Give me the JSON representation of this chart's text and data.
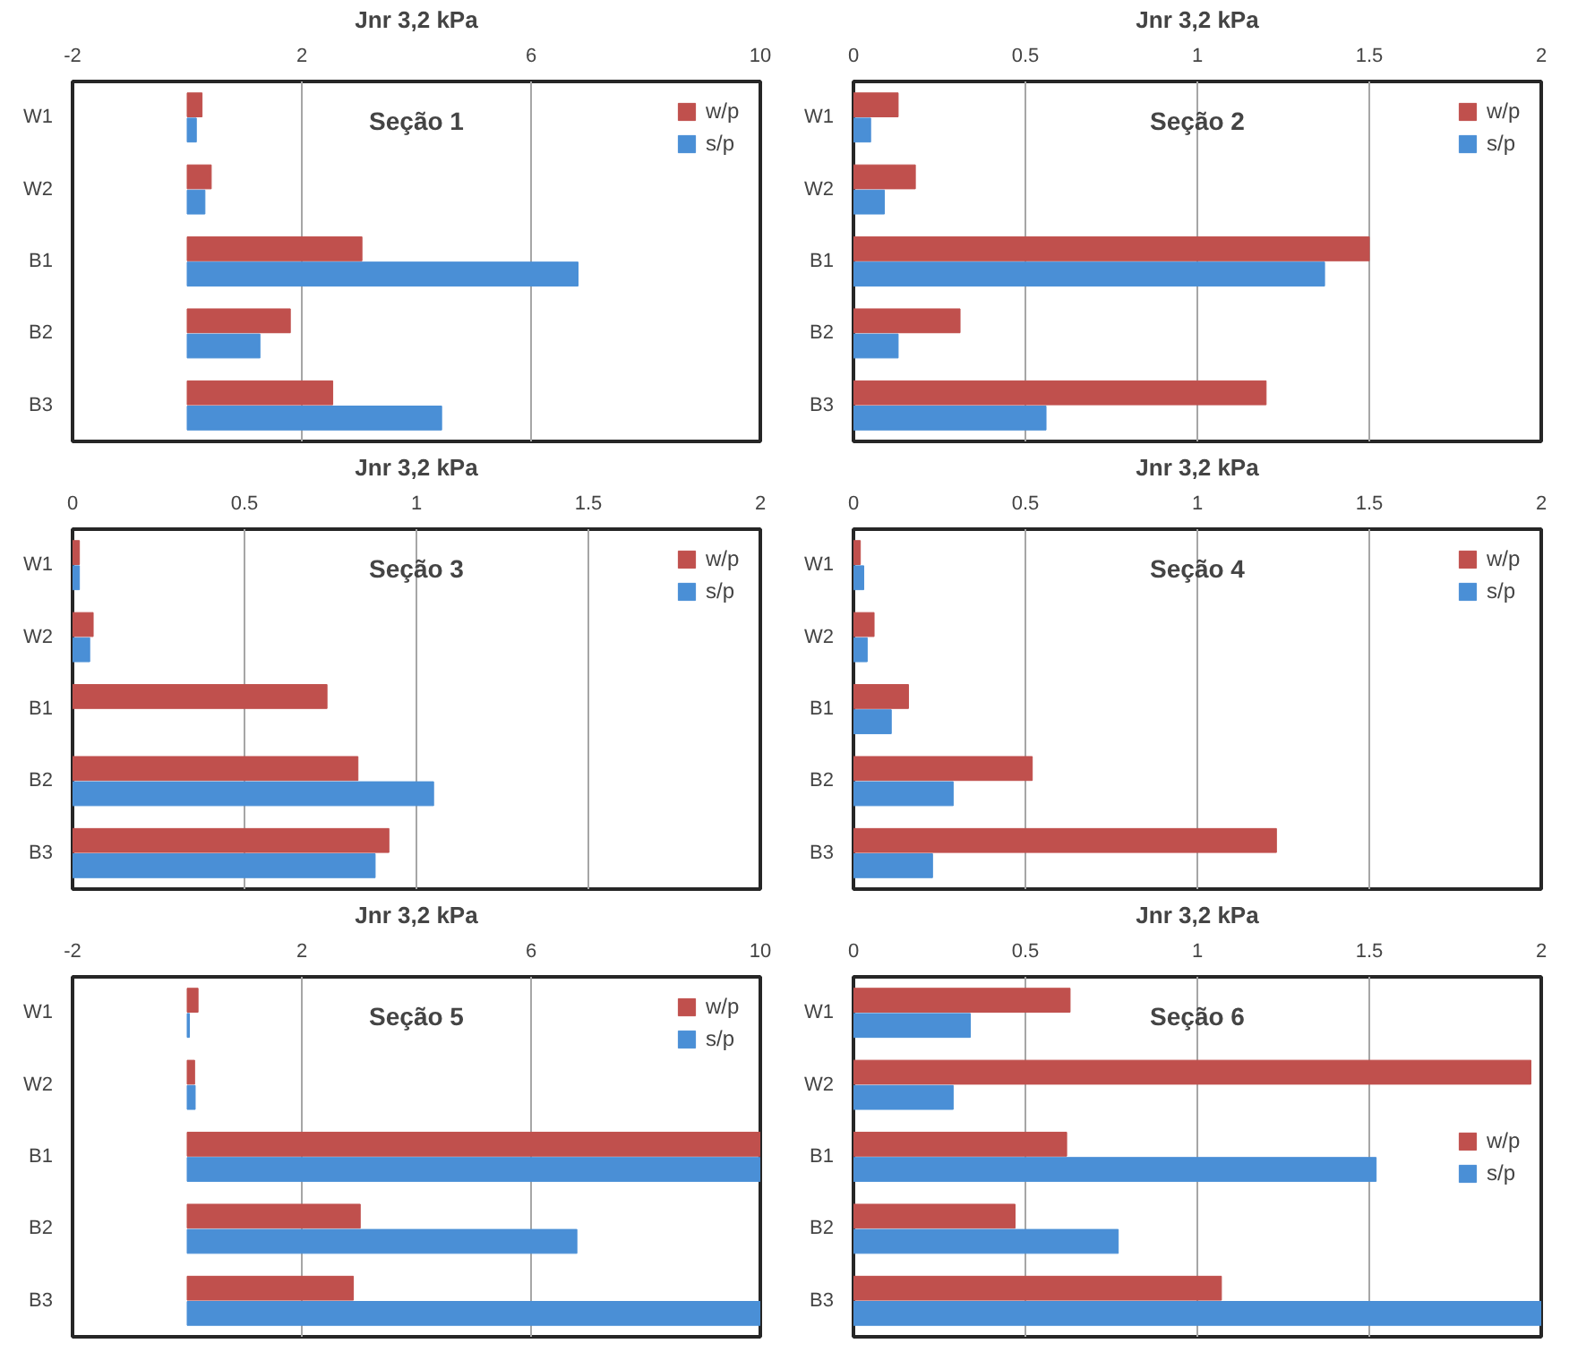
{
  "chart_data": [
    {
      "type": "bar",
      "orientation": "horizontal",
      "title": "Seção 1",
      "xlabel": "Jnr 3,2 kPa",
      "categories": [
        "W1",
        "W2",
        "B1",
        "B2",
        "B3"
      ],
      "xlim": [
        -2,
        10
      ],
      "xticks": [
        -2,
        2,
        6,
        10
      ],
      "grid": "x",
      "legend": "top right",
      "series": [
        {
          "name": "w/p",
          "color": "#c0504d",
          "values": [
            0.26,
            0.42,
            3.05,
            1.8,
            2.54
          ]
        },
        {
          "name": "s/p",
          "color": "#4a8fd6",
          "values": [
            0.16,
            0.31,
            6.82,
            1.27,
            4.44
          ]
        }
      ]
    },
    {
      "type": "bar",
      "orientation": "horizontal",
      "title": "Seção 2",
      "xlabel": "Jnr 3,2 kPa",
      "categories": [
        "W1",
        "W2",
        "B1",
        "B2",
        "B3"
      ],
      "xlim": [
        0,
        2
      ],
      "xticks": [
        0,
        0.5,
        1,
        1.5,
        2
      ],
      "grid": "x",
      "legend": "top right",
      "series": [
        {
          "name": "w/p",
          "color": "#c0504d",
          "values": [
            0.13,
            0.18,
            1.5,
            0.31,
            1.2
          ]
        },
        {
          "name": "s/p",
          "color": "#4a8fd6",
          "values": [
            0.05,
            0.09,
            1.37,
            0.13,
            0.56
          ]
        }
      ]
    },
    {
      "type": "bar",
      "orientation": "horizontal",
      "title": "Seção 3",
      "xlabel": "Jnr 3,2 kPa",
      "categories": [
        "W1",
        "W2",
        "B1",
        "B2",
        "B3"
      ],
      "xlim": [
        0,
        2
      ],
      "xticks": [
        0,
        0.5,
        1,
        1.5,
        2
      ],
      "grid": "x",
      "legend": "top right",
      "series": [
        {
          "name": "w/p",
          "color": "#c0504d",
          "values": [
            0.02,
            0.06,
            0.74,
            0.83,
            0.92
          ]
        },
        {
          "name": "s/p",
          "color": "#4a8fd6",
          "values": [
            0.02,
            0.05,
            null,
            1.05,
            0.88
          ]
        }
      ]
    },
    {
      "type": "bar",
      "orientation": "horizontal",
      "title": "Seção 4",
      "xlabel": "Jnr 3,2 kPa",
      "categories": [
        "W1",
        "W2",
        "B1",
        "B2",
        "B3"
      ],
      "xlim": [
        0,
        2
      ],
      "xticks": [
        0,
        0.5,
        1,
        1.5,
        2
      ],
      "grid": "x",
      "legend": "top right",
      "series": [
        {
          "name": "w/p",
          "color": "#c0504d",
          "values": [
            0.02,
            0.06,
            0.16,
            0.52,
            1.23
          ]
        },
        {
          "name": "s/p",
          "color": "#4a8fd6",
          "values": [
            0.03,
            0.04,
            0.11,
            0.29,
            0.23
          ]
        }
      ]
    },
    {
      "type": "bar",
      "orientation": "horizontal",
      "title": "Seção 5",
      "xlabel": "Jnr 3,2 kPa",
      "categories": [
        "W1",
        "W2",
        "B1",
        "B2",
        "B3"
      ],
      "xlim": [
        -2,
        10
      ],
      "xticks": [
        -2,
        2,
        6,
        10
      ],
      "grid": "x",
      "legend": "top right",
      "series": [
        {
          "name": "w/p",
          "color": "#c0504d",
          "values": [
            0.19,
            0.13,
            10,
            3.02,
            2.9
          ]
        },
        {
          "name": "s/p",
          "color": "#4a8fd6",
          "values": [
            0.04,
            0.14,
            10,
            6.8,
            10
          ]
        }
      ]
    },
    {
      "type": "bar",
      "orientation": "horizontal",
      "title": "Seção 6",
      "xlabel": "Jnr 3,2 kPa",
      "categories": [
        "W1",
        "W2",
        "B1",
        "B2",
        "B3"
      ],
      "xlim": [
        0,
        2
      ],
      "xticks": [
        0,
        0.5,
        1,
        1.5,
        2
      ],
      "grid": "x",
      "legend": "right",
      "series": [
        {
          "name": "w/p",
          "color": "#c0504d",
          "values": [
            0.63,
            1.97,
            0.62,
            0.47,
            1.07
          ]
        },
        {
          "name": "s/p",
          "color": "#4a8fd6",
          "values": [
            0.34,
            0.29,
            1.52,
            0.77,
            2.0
          ]
        }
      ]
    }
  ]
}
